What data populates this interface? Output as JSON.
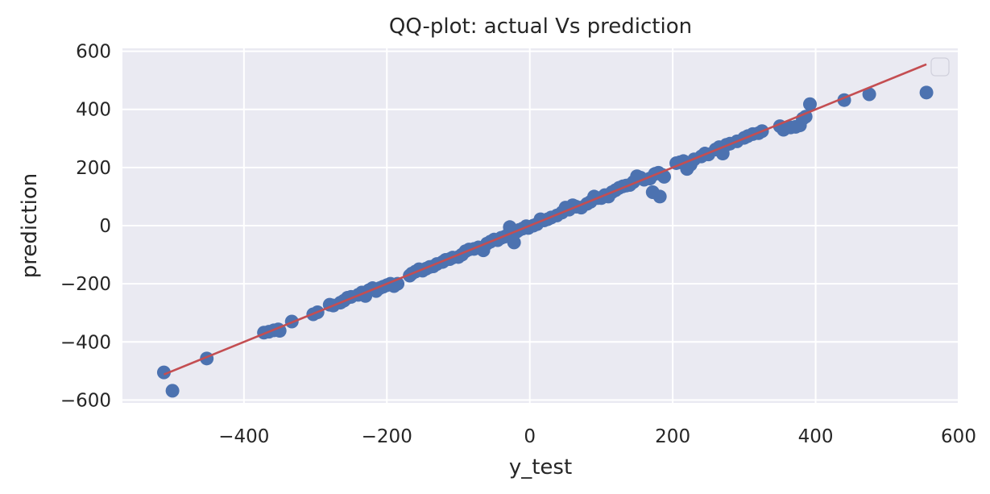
{
  "chart_data": {
    "type": "scatter",
    "title": "QQ-plot: actual Vs prediction",
    "xlabel": "y_test",
    "ylabel": "prediction",
    "xlim": [
      -570,
      600
    ],
    "ylim": [
      -610,
      610
    ],
    "xticks": [
      -400,
      -200,
      0,
      200,
      400,
      600
    ],
    "yticks": [
      -600,
      -400,
      -200,
      0,
      200,
      400,
      600
    ],
    "xtick_labels": [
      "−400",
      "−200",
      "0",
      "200",
      "400",
      "600"
    ],
    "ytick_labels": [
      "−600",
      "−400",
      "−200",
      "0",
      "200",
      "400",
      "600"
    ],
    "grid": true,
    "legend": "top-right (empty)",
    "colors": {
      "points": "#4c72b0",
      "line": "#c44e52",
      "background": "#eaeaf2",
      "grid": "#ffffff"
    },
    "reference_line": {
      "x": [
        -512,
        555
      ],
      "y": [
        -512,
        555
      ]
    },
    "points": [
      [
        -512,
        -505
      ],
      [
        -500,
        -568
      ],
      [
        -452,
        -457
      ],
      [
        -372,
        -368
      ],
      [
        -365,
        -365
      ],
      [
        -358,
        -360
      ],
      [
        -352,
        -357
      ],
      [
        -350,
        -362
      ],
      [
        -333,
        -330
      ],
      [
        -303,
        -305
      ],
      [
        -297,
        -298
      ],
      [
        -280,
        -272
      ],
      [
        -275,
        -275
      ],
      [
        -265,
        -265
      ],
      [
        -260,
        -258
      ],
      [
        -255,
        -248
      ],
      [
        -250,
        -245
      ],
      [
        -240,
        -238
      ],
      [
        -235,
        -230
      ],
      [
        -230,
        -242
      ],
      [
        -225,
        -222
      ],
      [
        -220,
        -215
      ],
      [
        -215,
        -225
      ],
      [
        -210,
        -215
      ],
      [
        -205,
        -210
      ],
      [
        -200,
        -205
      ],
      [
        -195,
        -200
      ],
      [
        -190,
        -208
      ],
      [
        -185,
        -200
      ],
      [
        -168,
        -172
      ],
      [
        -165,
        -165
      ],
      [
        -160,
        -158
      ],
      [
        -155,
        -150
      ],
      [
        -150,
        -155
      ],
      [
        -145,
        -148
      ],
      [
        -140,
        -142
      ],
      [
        -135,
        -140
      ],
      [
        -130,
        -132
      ],
      [
        -122,
        -125
      ],
      [
        -118,
        -118
      ],
      [
        -112,
        -115
      ],
      [
        -108,
        -110
      ],
      [
        -100,
        -108
      ],
      [
        -95,
        -100
      ],
      [
        -90,
        -88
      ],
      [
        -85,
        -82
      ],
      [
        -78,
        -80
      ],
      [
        -72,
        -75
      ],
      [
        -65,
        -85
      ],
      [
        -60,
        -62
      ],
      [
        -55,
        -55
      ],
      [
        -50,
        -48
      ],
      [
        -45,
        -50
      ],
      [
        -40,
        -42
      ],
      [
        -35,
        -38
      ],
      [
        -30,
        -30
      ],
      [
        -28,
        -5
      ],
      [
        -25,
        -35
      ],
      [
        -22,
        -58
      ],
      [
        -18,
        -20
      ],
      [
        -15,
        -15
      ],
      [
        -10,
        -10
      ],
      [
        -5,
        -2
      ],
      [
        -2,
        -8
      ],
      [
        5,
        0
      ],
      [
        10,
        5
      ],
      [
        15,
        22
      ],
      [
        20,
        18
      ],
      [
        25,
        22
      ],
      [
        30,
        28
      ],
      [
        38,
        35
      ],
      [
        45,
        45
      ],
      [
        50,
        62
      ],
      [
        55,
        55
      ],
      [
        60,
        70
      ],
      [
        65,
        65
      ],
      [
        72,
        62
      ],
      [
        80,
        75
      ],
      [
        85,
        82
      ],
      [
        90,
        100
      ],
      [
        95,
        95
      ],
      [
        100,
        95
      ],
      [
        105,
        105
      ],
      [
        110,
        100
      ],
      [
        115,
        115
      ],
      [
        120,
        122
      ],
      [
        125,
        130
      ],
      [
        130,
        135
      ],
      [
        135,
        138
      ],
      [
        140,
        140
      ],
      [
        145,
        150
      ],
      [
        150,
        170
      ],
      [
        155,
        165
      ],
      [
        160,
        158
      ],
      [
        168,
        162
      ],
      [
        172,
        115
      ],
      [
        175,
        178
      ],
      [
        180,
        182
      ],
      [
        182,
        100
      ],
      [
        185,
        175
      ],
      [
        188,
        168
      ],
      [
        205,
        215
      ],
      [
        210,
        218
      ],
      [
        215,
        222
      ],
      [
        220,
        195
      ],
      [
        225,
        210
      ],
      [
        230,
        228
      ],
      [
        240,
        238
      ],
      [
        245,
        248
      ],
      [
        250,
        245
      ],
      [
        260,
        262
      ],
      [
        265,
        270
      ],
      [
        270,
        248
      ],
      [
        275,
        278
      ],
      [
        280,
        282
      ],
      [
        290,
        290
      ],
      [
        300,
        302
      ],
      [
        305,
        308
      ],
      [
        312,
        315
      ],
      [
        320,
        318
      ],
      [
        325,
        325
      ],
      [
        350,
        342
      ],
      [
        355,
        330
      ],
      [
        365,
        338
      ],
      [
        372,
        340
      ],
      [
        378,
        345
      ],
      [
        382,
        368
      ],
      [
        386,
        375
      ],
      [
        392,
        418
      ],
      [
        440,
        432
      ],
      [
        475,
        452
      ],
      [
        555,
        458
      ]
    ]
  }
}
